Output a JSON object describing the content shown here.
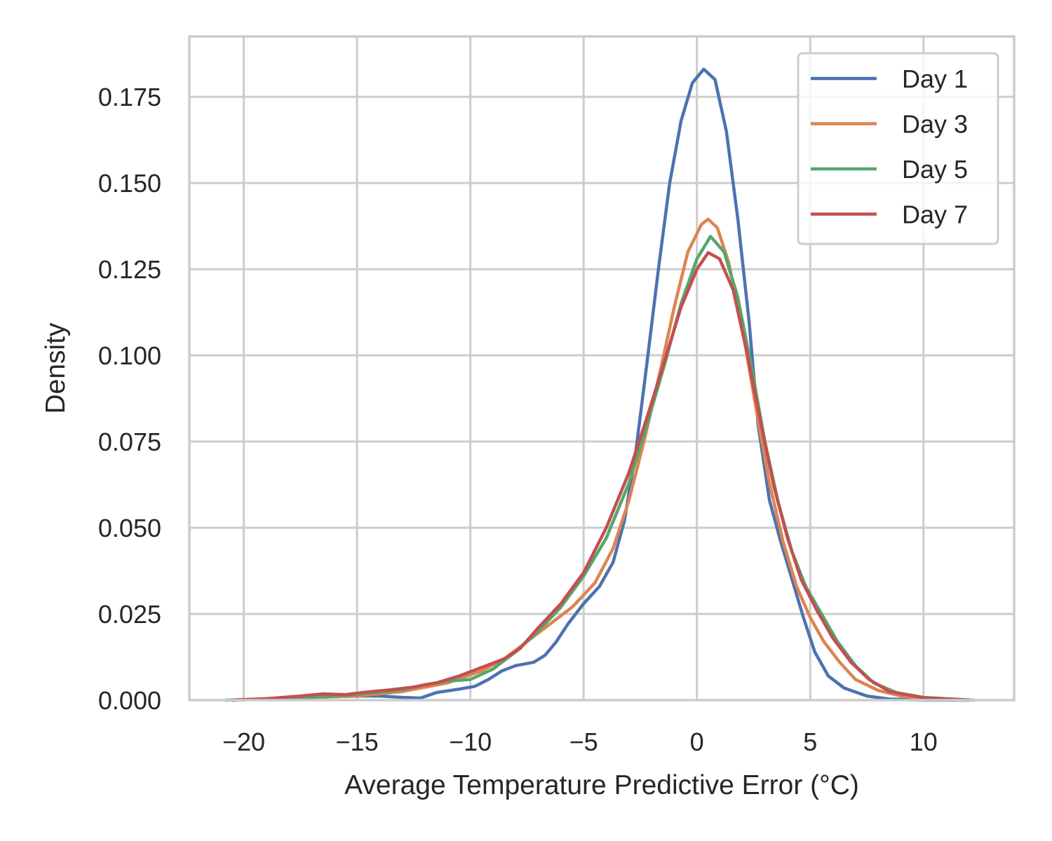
{
  "chart_data": {
    "type": "line",
    "title": "",
    "xlabel": "Average Temperature Predictive Error (°C)",
    "ylabel": "Density",
    "xlim": [
      -22.4,
      14
    ],
    "ylim": [
      0,
      0.1925
    ],
    "xticks": [
      -20,
      -15,
      -10,
      -5,
      0,
      5,
      10
    ],
    "xtick_labels": [
      "−20",
      "−15",
      "−10",
      "−5",
      "0",
      "5",
      "10"
    ],
    "yticks": [
      0.0,
      0.025,
      0.05,
      0.075,
      0.1,
      0.125,
      0.15,
      0.175
    ],
    "ytick_labels": [
      "0.000",
      "0.025",
      "0.050",
      "0.075",
      "0.100",
      "0.125",
      "0.150",
      "0.175"
    ],
    "grid": true,
    "legend_position": "top-right",
    "series": [
      {
        "name": "Day 1",
        "color": "#4c72b0",
        "points": [
          [
            -20.5,
            0.0
          ],
          [
            -19,
            0.0003
          ],
          [
            -17,
            0.0008
          ],
          [
            -15,
            0.0012
          ],
          [
            -14,
            0.0012
          ],
          [
            -13,
            0.0008
          ],
          [
            -12.2,
            0.0006
          ],
          [
            -11.5,
            0.0022
          ],
          [
            -10.5,
            0.0032
          ],
          [
            -9.8,
            0.004
          ],
          [
            -9.2,
            0.006
          ],
          [
            -8.6,
            0.0085
          ],
          [
            -8,
            0.01
          ],
          [
            -7.2,
            0.011
          ],
          [
            -6.7,
            0.013
          ],
          [
            -6.2,
            0.017
          ],
          [
            -5.7,
            0.022
          ],
          [
            -5,
            0.028
          ],
          [
            -4.3,
            0.033
          ],
          [
            -3.7,
            0.04
          ],
          [
            -3.2,
            0.052
          ],
          [
            -2.7,
            0.072
          ],
          [
            -2.2,
            0.098
          ],
          [
            -1.7,
            0.125
          ],
          [
            -1.2,
            0.15
          ],
          [
            -0.7,
            0.168
          ],
          [
            -0.2,
            0.179
          ],
          [
            0.3,
            0.183
          ],
          [
            0.8,
            0.18
          ],
          [
            1.3,
            0.165
          ],
          [
            1.8,
            0.14
          ],
          [
            2.3,
            0.11
          ],
          [
            2.7,
            0.08
          ],
          [
            3.2,
            0.058
          ],
          [
            3.7,
            0.046
          ],
          [
            4.2,
            0.035
          ],
          [
            4.7,
            0.024
          ],
          [
            5.2,
            0.014
          ],
          [
            5.8,
            0.007
          ],
          [
            6.5,
            0.0035
          ],
          [
            7.5,
            0.0012
          ],
          [
            8.5,
            0.0003
          ],
          [
            10,
            0.0
          ],
          [
            12,
            0.0
          ]
        ]
      },
      {
        "name": "Day 3",
        "color": "#dd8452",
        "points": [
          [
            -20.5,
            0.0
          ],
          [
            -19,
            0.0003
          ],
          [
            -17,
            0.0008
          ],
          [
            -15,
            0.0012
          ],
          [
            -13,
            0.0025
          ],
          [
            -11,
            0.005
          ],
          [
            -9.5,
            0.0085
          ],
          [
            -8.5,
            0.012
          ],
          [
            -7.5,
            0.017
          ],
          [
            -6.5,
            0.022
          ],
          [
            -5.5,
            0.027
          ],
          [
            -4.5,
            0.034
          ],
          [
            -3.7,
            0.044
          ],
          [
            -3,
            0.058
          ],
          [
            -2.3,
            0.076
          ],
          [
            -1.6,
            0.096
          ],
          [
            -1,
            0.114
          ],
          [
            -0.4,
            0.13
          ],
          [
            0.2,
            0.138
          ],
          [
            0.5,
            0.1395
          ],
          [
            0.9,
            0.137
          ],
          [
            1.4,
            0.127
          ],
          [
            2,
            0.108
          ],
          [
            2.6,
            0.085
          ],
          [
            3.2,
            0.063
          ],
          [
            3.8,
            0.046
          ],
          [
            4.4,
            0.033
          ],
          [
            5,
            0.024
          ],
          [
            5.6,
            0.017
          ],
          [
            6.3,
            0.011
          ],
          [
            7,
            0.006
          ],
          [
            8,
            0.0028
          ],
          [
            9,
            0.0012
          ],
          [
            10,
            0.0004
          ],
          [
            12,
            0.0
          ]
        ]
      },
      {
        "name": "Day 5",
        "color": "#55a868",
        "points": [
          [
            -20.8,
            0.0
          ],
          [
            -19,
            0.0004
          ],
          [
            -17,
            0.0008
          ],
          [
            -15,
            0.0016
          ],
          [
            -13,
            0.003
          ],
          [
            -12,
            0.0045
          ],
          [
            -11,
            0.0055
          ],
          [
            -10,
            0.006
          ],
          [
            -9,
            0.009
          ],
          [
            -8,
            0.014
          ],
          [
            -7,
            0.02
          ],
          [
            -6,
            0.027
          ],
          [
            -5,
            0.036
          ],
          [
            -4,
            0.047
          ],
          [
            -3,
            0.063
          ],
          [
            -2.2,
            0.08
          ],
          [
            -1.4,
            0.098
          ],
          [
            -0.7,
            0.115
          ],
          [
            0,
            0.128
          ],
          [
            0.6,
            0.1345
          ],
          [
            1.2,
            0.13
          ],
          [
            1.8,
            0.117
          ],
          [
            2.4,
            0.097
          ],
          [
            3,
            0.075
          ],
          [
            3.6,
            0.057
          ],
          [
            4.2,
            0.043
          ],
          [
            4.8,
            0.033
          ],
          [
            5.5,
            0.025
          ],
          [
            6.2,
            0.017
          ],
          [
            7,
            0.01
          ],
          [
            7.8,
            0.005
          ],
          [
            8.8,
            0.0022
          ],
          [
            10,
            0.0008
          ],
          [
            12.2,
            0.0
          ]
        ]
      },
      {
        "name": "Day 7",
        "color": "#c44e52",
        "points": [
          [
            -20.5,
            0.0
          ],
          [
            -19,
            0.0004
          ],
          [
            -17.5,
            0.0012
          ],
          [
            -16.5,
            0.0018
          ],
          [
            -15.5,
            0.0016
          ],
          [
            -14.5,
            0.0024
          ],
          [
            -13.5,
            0.003
          ],
          [
            -12.5,
            0.0038
          ],
          [
            -11.5,
            0.005
          ],
          [
            -10.5,
            0.007
          ],
          [
            -9.5,
            0.0095
          ],
          [
            -8.5,
            0.012
          ],
          [
            -7.8,
            0.015
          ],
          [
            -7,
            0.021
          ],
          [
            -6,
            0.028
          ],
          [
            -5,
            0.037
          ],
          [
            -4,
            0.05
          ],
          [
            -3,
            0.066
          ],
          [
            -2.2,
            0.082
          ],
          [
            -1.4,
            0.099
          ],
          [
            -0.7,
            0.114
          ],
          [
            0,
            0.125
          ],
          [
            0.5,
            0.1298
          ],
          [
            1,
            0.128
          ],
          [
            1.6,
            0.119
          ],
          [
            2.2,
            0.101
          ],
          [
            2.8,
            0.081
          ],
          [
            3.4,
            0.062
          ],
          [
            4,
            0.047
          ],
          [
            4.6,
            0.035
          ],
          [
            5.3,
            0.026
          ],
          [
            6,
            0.018
          ],
          [
            6.8,
            0.011
          ],
          [
            7.6,
            0.006
          ],
          [
            8.5,
            0.0025
          ],
          [
            10,
            0.0007
          ],
          [
            12,
            0.0
          ]
        ]
      }
    ]
  }
}
